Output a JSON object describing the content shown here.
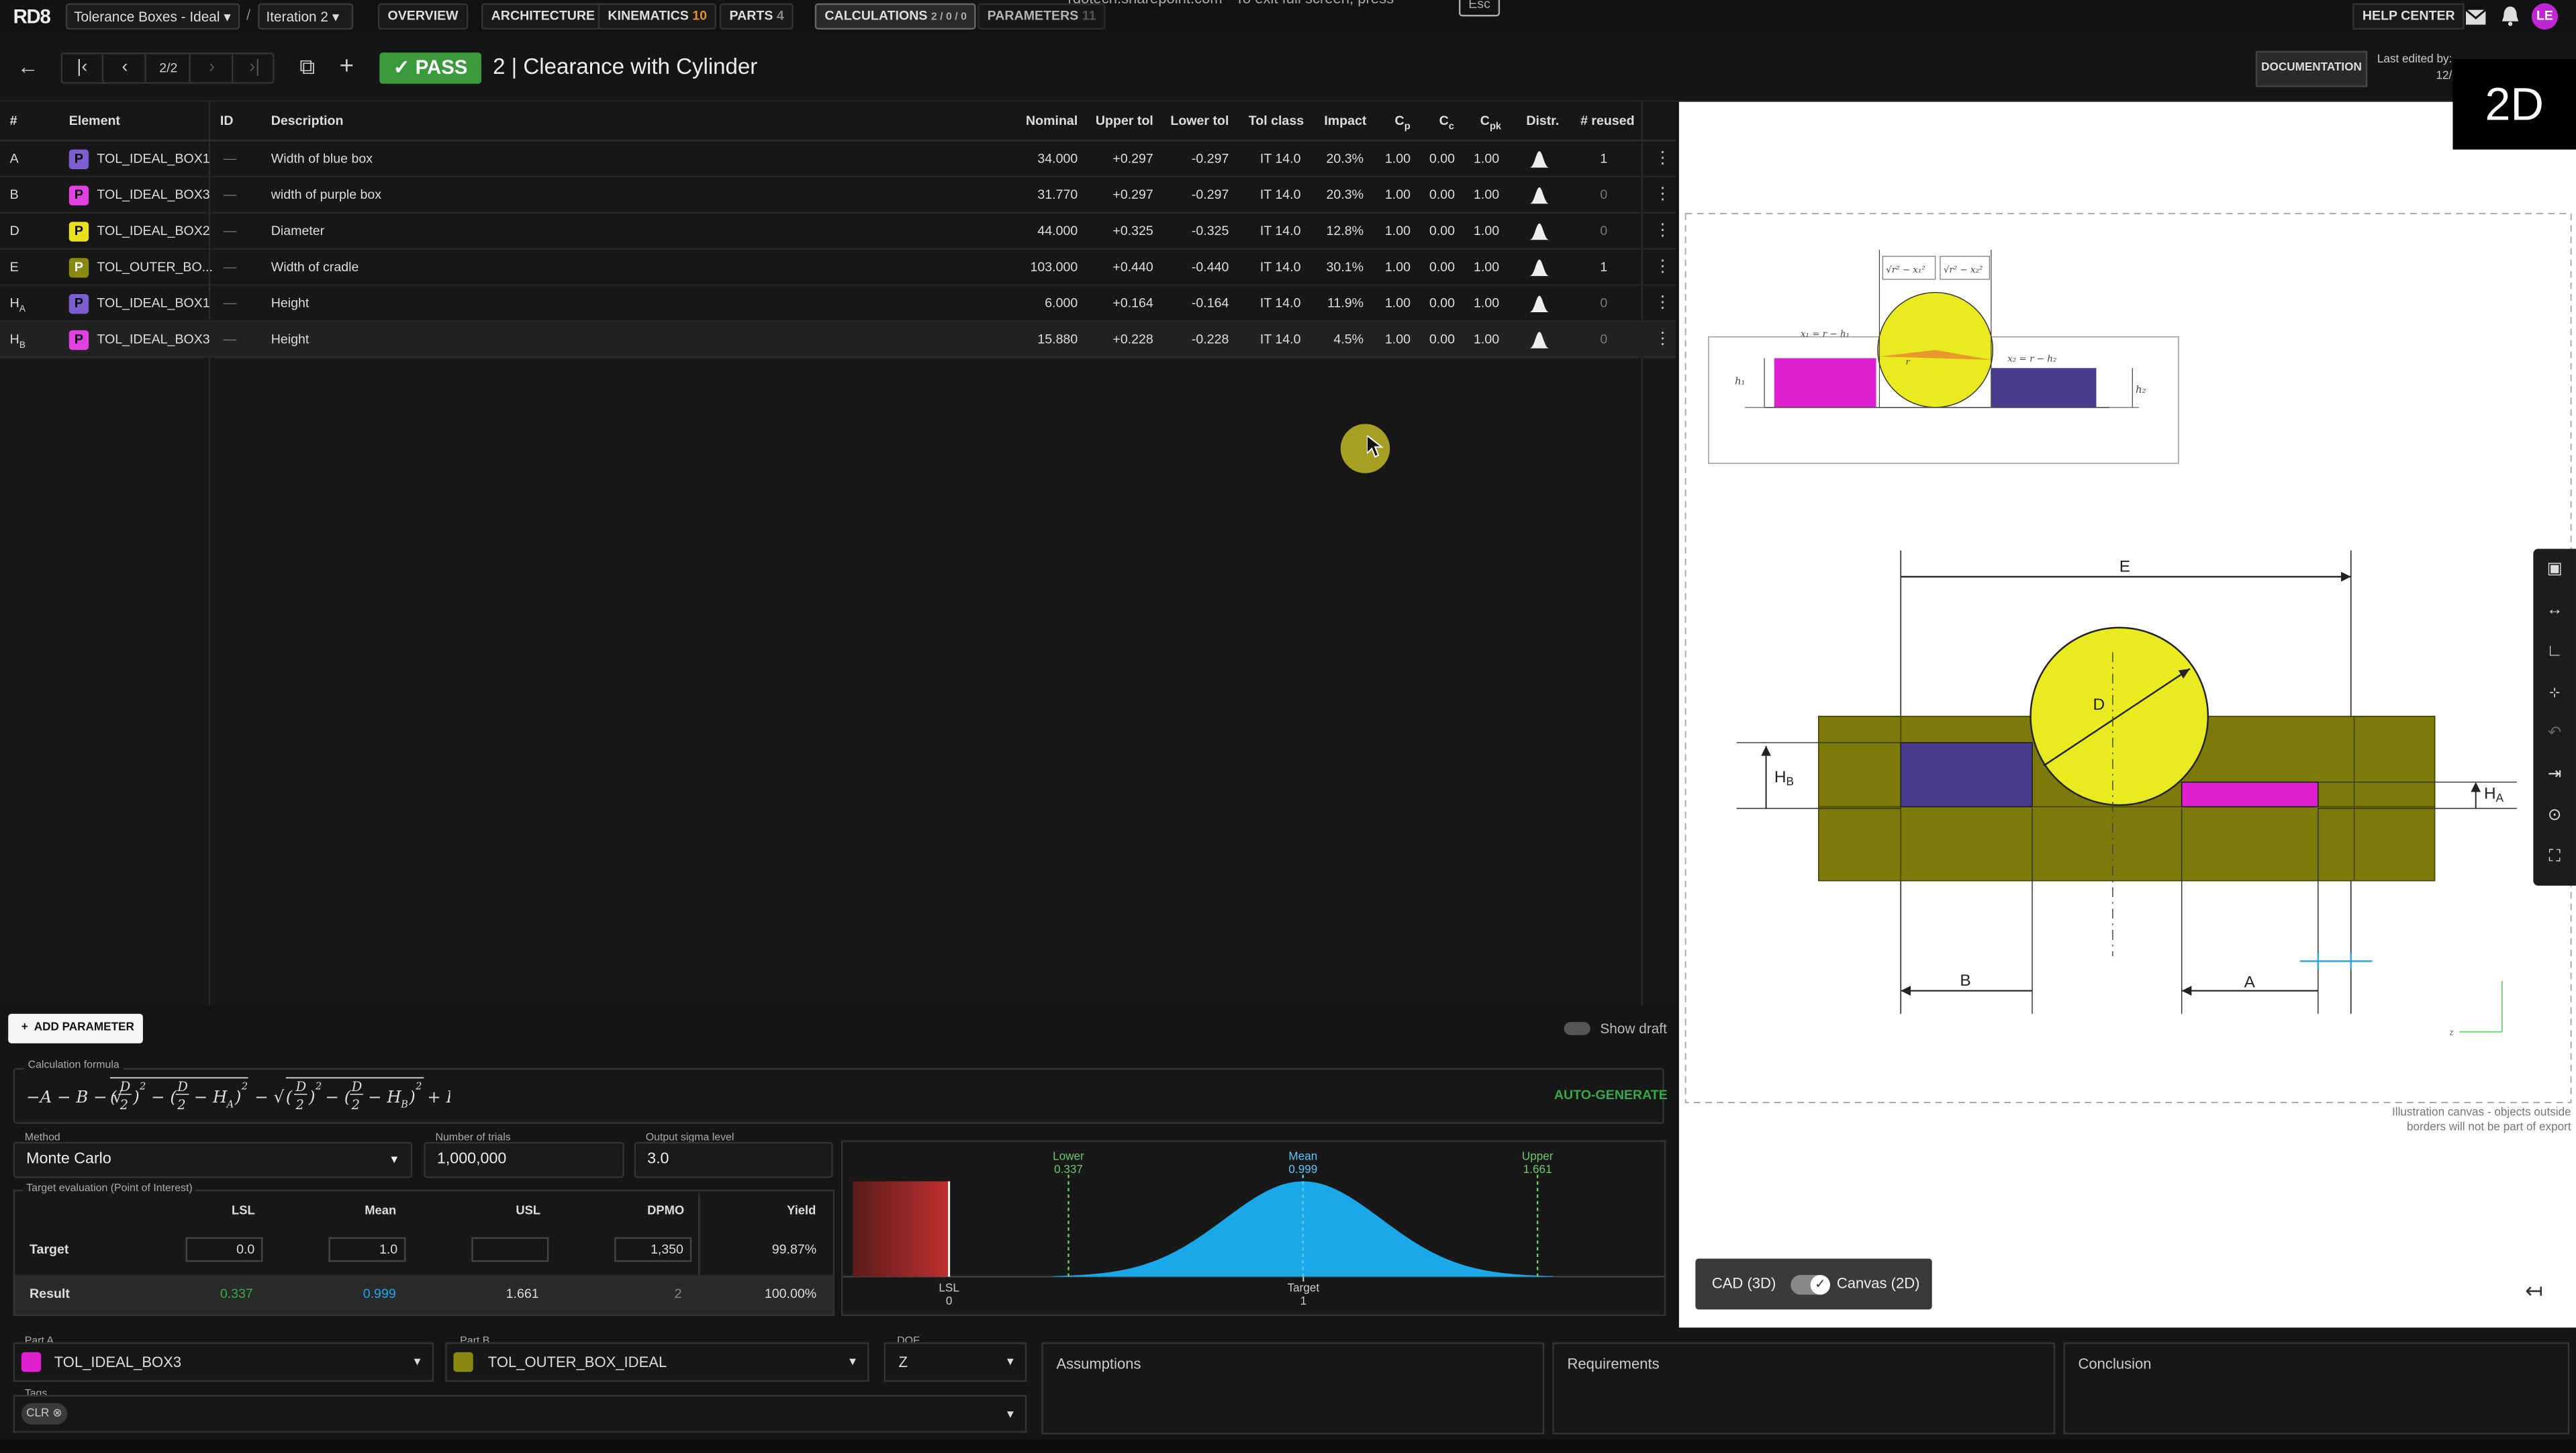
{
  "topnav": {
    "logo": "RD8",
    "project": "Tolerance Boxes - Ideal",
    "separator": "/",
    "iteration": "Iteration 2",
    "tabs": [
      {
        "label": "OVERVIEW",
        "count": ""
      },
      {
        "label": "ARCHITECTURE",
        "count": ""
      },
      {
        "label": "KINEMATICS",
        "count": "10"
      },
      {
        "label": "PARTS",
        "count": "4"
      },
      {
        "label": "CALCULATIONS",
        "count": "2 / 0 / 0"
      },
      {
        "label": "PARAMETERS",
        "count": "11"
      }
    ],
    "fullscreen_hint": "rdotech.sharepoint.com  ·  To exit full screen, press",
    "fullscreen_key": "Esc",
    "help": "HELP CENTER",
    "avatar": "LE"
  },
  "toolbar": {
    "page": "2/2",
    "status": "PASS",
    "title": "2 | Clearance with Cylinder",
    "documentation": "DOCUMENTATION",
    "last_edited_label": "Last edited by:",
    "last_edited_date": "12/",
    "view_badge": "2D"
  },
  "table": {
    "columns": [
      "#",
      "Element",
      "ID",
      "Description",
      "Nominal",
      "Upper tol",
      "Lower tol",
      "Tol class",
      "Impact",
      "Cp",
      "Cc",
      "Cpk",
      "Distr.",
      "# reused"
    ],
    "rows": [
      {
        "key": "A",
        "sub": "",
        "chip": "P",
        "chip_color": "#7b5fd0",
        "element": "TOL_IDEAL_BOX1",
        "id": "—",
        "desc": "Width of blue box",
        "nominal": "34.000",
        "upper": "+0.297",
        "lower": "-0.297",
        "tolclass": "IT 14.0",
        "impact": "20.3%",
        "cp": "1.00",
        "cc": "0.00",
        "cpk": "1.00",
        "reused": "1"
      },
      {
        "key": "B",
        "sub": "",
        "chip": "P",
        "chip_color": "#e040e0",
        "element": "TOL_IDEAL_BOX3",
        "id": "—",
        "desc": "width of purple box",
        "nominal": "31.770",
        "upper": "+0.297",
        "lower": "-0.297",
        "tolclass": "IT 14.0",
        "impact": "20.3%",
        "cp": "1.00",
        "cc": "0.00",
        "cpk": "1.00",
        "reused": "0"
      },
      {
        "key": "D",
        "sub": "",
        "chip": "P",
        "chip_color": "#e8e020",
        "element": "TOL_IDEAL_BOX2",
        "id": "—",
        "desc": "Diameter",
        "nominal": "44.000",
        "upper": "+0.325",
        "lower": "-0.325",
        "tolclass": "IT 14.0",
        "impact": "12.8%",
        "cp": "1.00",
        "cc": "0.00",
        "cpk": "1.00",
        "reused": "0"
      },
      {
        "key": "E",
        "sub": "",
        "chip": "P",
        "chip_color": "#8a8a10",
        "element": "TOL_OUTER_BO...",
        "id": "—",
        "desc": "Width of cradle",
        "nominal": "103.000",
        "upper": "+0.440",
        "lower": "-0.440",
        "tolclass": "IT 14.0",
        "impact": "30.1%",
        "cp": "1.00",
        "cc": "0.00",
        "cpk": "1.00",
        "reused": "1"
      },
      {
        "key": "H",
        "sub": "A",
        "chip": "P",
        "chip_color": "#7b5fd0",
        "element": "TOL_IDEAL_BOX1",
        "id": "—",
        "desc": "Height",
        "nominal": "6.000",
        "upper": "+0.164",
        "lower": "-0.164",
        "tolclass": "IT 14.0",
        "impact": "11.9%",
        "cp": "1.00",
        "cc": "0.00",
        "cpk": "1.00",
        "reused": "0"
      },
      {
        "key": "H",
        "sub": "B",
        "chip": "P",
        "chip_color": "#e040e0",
        "element": "TOL_IDEAL_BOX3",
        "id": "—",
        "desc": "Height",
        "nominal": "15.880",
        "upper": "+0.228",
        "lower": "-0.228",
        "tolclass": "IT 14.0",
        "impact": "4.5%",
        "cp": "1.00",
        "cc": "0.00",
        "cpk": "1.00",
        "reused": "0"
      }
    ],
    "add_parameter": "ADD PARAMETER",
    "show_draft": "Show draft"
  },
  "formula": {
    "label": "Calculation formula",
    "auto_generate": "AUTO-GENERATE"
  },
  "method": {
    "label": "Method",
    "value": "Monte Carlo",
    "trials_label": "Number of trials",
    "trials": "1,000,000",
    "sigma_label": "Output sigma level",
    "sigma": "3.0"
  },
  "evaluation": {
    "label": "Target evaluation (Point of Interest)",
    "headers": [
      "LSL",
      "Mean",
      "USL",
      "DPMO",
      "Yield"
    ],
    "target_label": "Target",
    "target": {
      "lsl": "0.0",
      "mean": "1.0",
      "usl": "",
      "dpmo": "1,350",
      "yield": "99.87%"
    },
    "result_label": "Result",
    "result": {
      "lsl": "0.337",
      "mean": "0.999",
      "usl": "1.661",
      "dpmo": "2",
      "yield": "100.00%"
    }
  },
  "chart_data": {
    "type": "area",
    "title": "",
    "lower": {
      "label": "Lower",
      "value": "0.337"
    },
    "mean": {
      "label": "Mean",
      "value": "0.999"
    },
    "upper": {
      "label": "Upper",
      "value": "1.661"
    },
    "lsl": {
      "label": "LSL",
      "value": "0"
    },
    "target": {
      "label": "Target",
      "value": "1"
    },
    "distribution": {
      "mean": 0.999,
      "sigma": 0.2207
    },
    "xlim": [
      -0.3,
      2.0
    ]
  },
  "bottom": {
    "part_a_label": "Part A",
    "part_a": "TOL_IDEAL_BOX3",
    "part_a_color": "#e020d0",
    "part_b_label": "Part B",
    "part_b": "TOL_OUTER_BOX_IDEAL",
    "part_b_color": "#8a8a10",
    "dof_label": "DOF",
    "dof": "Z",
    "tags_label": "Tags",
    "tag": "CLR",
    "assumptions": "Assumptions",
    "requirements": "Requirements",
    "conclusion": "Conclusion"
  },
  "canvas": {
    "dim_E": "E",
    "dim_D": "D",
    "dim_HB": "H",
    "dim_HB_sub": "B",
    "dim_HA": "H",
    "dim_HA_sub": "A",
    "dim_A": "A",
    "dim_B": "B",
    "illustration_note_1": "Illustration canvas - objects outside",
    "illustration_note_2": "borders will not be part of export",
    "cad_label": "CAD (3D)",
    "canvas_label": "Canvas (2D)",
    "mini_x1": "x₁ = r − h₁",
    "mini_x2": "x₂ = r − h₂",
    "mini_h1": "h₁",
    "mini_h2": "h₂",
    "mini_r": "r",
    "mini_sq1": "√r² − x₁²",
    "mini_sq2": "√r² − x₂²",
    "axis_z": "z"
  },
  "colors": {
    "accent_green": "#3b9a3b",
    "hist_blue": "#1aa8e8",
    "cradle": "#7d7a0c",
    "purple_box": "#4a3d8f",
    "magenta_box": "#e020d0",
    "cylinder": "#eaea20"
  }
}
